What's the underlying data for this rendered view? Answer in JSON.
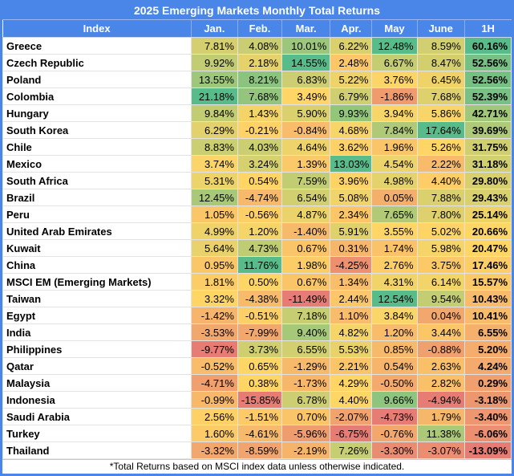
{
  "title": "2025 Emerging Markets Monthly Total Returns",
  "footnote": "*Total Returns based on MSCI index data unless otherwise indicated.",
  "columns": [
    "Index",
    "Jan.",
    "Feb.",
    "Mar.",
    "Apr.",
    "May",
    "June",
    "1H"
  ],
  "value_format": {
    "decimals": 2,
    "suffix": "%"
  },
  "colors": {
    "header_bg": "#4a86e8",
    "header_text": "#ffffff",
    "border_blue": "#4a86e8",
    "grid_line": "#e3e3e3",
    "scale_min": "#e67c73",
    "scale_mid": "#ffd666",
    "scale_max": "#57bb8a",
    "cell_text": "#000000"
  },
  "chart_data": {
    "type": "heatmap",
    "title": "2025 Emerging Markets Monthly Total Returns",
    "x_categories": [
      "Jan.",
      "Feb.",
      "Mar.",
      "Apr.",
      "May",
      "June",
      "1H"
    ],
    "color_scale": {
      "min": "#e67c73",
      "mid": "#ffd666",
      "max": "#57bb8a",
      "mode": "per-column",
      "midpoint": "median"
    },
    "rows": [
      {
        "name": "Greece",
        "values": [
          7.81,
          4.08,
          10.01,
          6.22,
          12.48,
          8.59,
          60.16
        ]
      },
      {
        "name": "Czech Republic",
        "values": [
          9.92,
          2.18,
          14.55,
          2.48,
          6.67,
          8.47,
          52.56
        ]
      },
      {
        "name": "Poland",
        "values": [
          13.55,
          8.21,
          6.83,
          5.22,
          3.76,
          6.45,
          52.56
        ]
      },
      {
        "name": "Colombia",
        "values": [
          21.18,
          7.68,
          3.49,
          6.79,
          -1.86,
          7.68,
          52.39
        ]
      },
      {
        "name": "Hungary",
        "values": [
          9.84,
          1.43,
          5.9,
          9.93,
          3.94,
          5.86,
          42.71
        ]
      },
      {
        "name": "South Korea",
        "values": [
          6.29,
          -0.21,
          -0.84,
          4.68,
          7.84,
          17.64,
          39.69
        ]
      },
      {
        "name": "Chile",
        "values": [
          8.83,
          4.03,
          4.64,
          3.62,
          1.96,
          5.26,
          31.75
        ]
      },
      {
        "name": "Mexico",
        "values": [
          3.74,
          3.24,
          1.39,
          13.03,
          4.54,
          2.22,
          31.18
        ]
      },
      {
        "name": "South Africa",
        "values": [
          5.31,
          0.54,
          7.59,
          3.96,
          4.98,
          4.4,
          29.8
        ]
      },
      {
        "name": "Brazil",
        "values": [
          12.45,
          -4.74,
          6.54,
          5.08,
          0.05,
          7.88,
          29.43
        ]
      },
      {
        "name": "Peru",
        "values": [
          1.05,
          -0.56,
          4.87,
          2.34,
          7.65,
          7.8,
          25.14
        ]
      },
      {
        "name": "United Arab Emirates",
        "values": [
          4.99,
          1.2,
          -1.4,
          5.91,
          3.55,
          5.02,
          20.66
        ]
      },
      {
        "name": "Kuwait",
        "values": [
          5.64,
          4.73,
          0.67,
          0.31,
          1.74,
          5.98,
          20.47
        ]
      },
      {
        "name": "China",
        "values": [
          0.95,
          11.76,
          1.98,
          -4.25,
          2.76,
          3.75,
          17.46
        ]
      },
      {
        "name": "MSCI EM (Emerging Markets)",
        "values": [
          1.81,
          0.5,
          0.67,
          1.34,
          4.31,
          6.14,
          15.57
        ]
      },
      {
        "name": "Taiwan",
        "values": [
          3.32,
          -4.38,
          -11.49,
          2.44,
          12.54,
          9.54,
          10.43
        ]
      },
      {
        "name": "Egypt",
        "values": [
          -1.42,
          -0.51,
          7.18,
          1.1,
          3.84,
          0.04,
          10.41
        ]
      },
      {
        "name": "India",
        "values": [
          -3.53,
          -7.99,
          9.4,
          4.82,
          1.2,
          3.44,
          6.55
        ]
      },
      {
        "name": "Philippines",
        "values": [
          -9.77,
          3.73,
          6.55,
          5.53,
          0.85,
          -0.88,
          5.2
        ]
      },
      {
        "name": "Qatar",
        "values": [
          -0.52,
          0.65,
          -1.29,
          2.21,
          0.54,
          2.63,
          4.24
        ]
      },
      {
        "name": "Malaysia",
        "values": [
          -4.71,
          0.38,
          -1.73,
          4.29,
          -0.5,
          2.82,
          0.29
        ]
      },
      {
        "name": "Indonesia",
        "values": [
          -0.99,
          -15.85,
          6.78,
          4.4,
          9.66,
          -4.94,
          -3.18
        ]
      },
      {
        "name": "Saudi Arabia",
        "values": [
          2.56,
          -1.51,
          0.7,
          -2.07,
          -4.73,
          1.79,
          -3.4
        ]
      },
      {
        "name": "Turkey",
        "values": [
          1.6,
          -4.61,
          -5.96,
          -6.75,
          -0.76,
          11.38,
          -6.06
        ]
      },
      {
        "name": "Thailand",
        "values": [
          -3.32,
          -8.59,
          -2.19,
          7.26,
          -3.3,
          -3.07,
          -13.09
        ]
      }
    ]
  }
}
